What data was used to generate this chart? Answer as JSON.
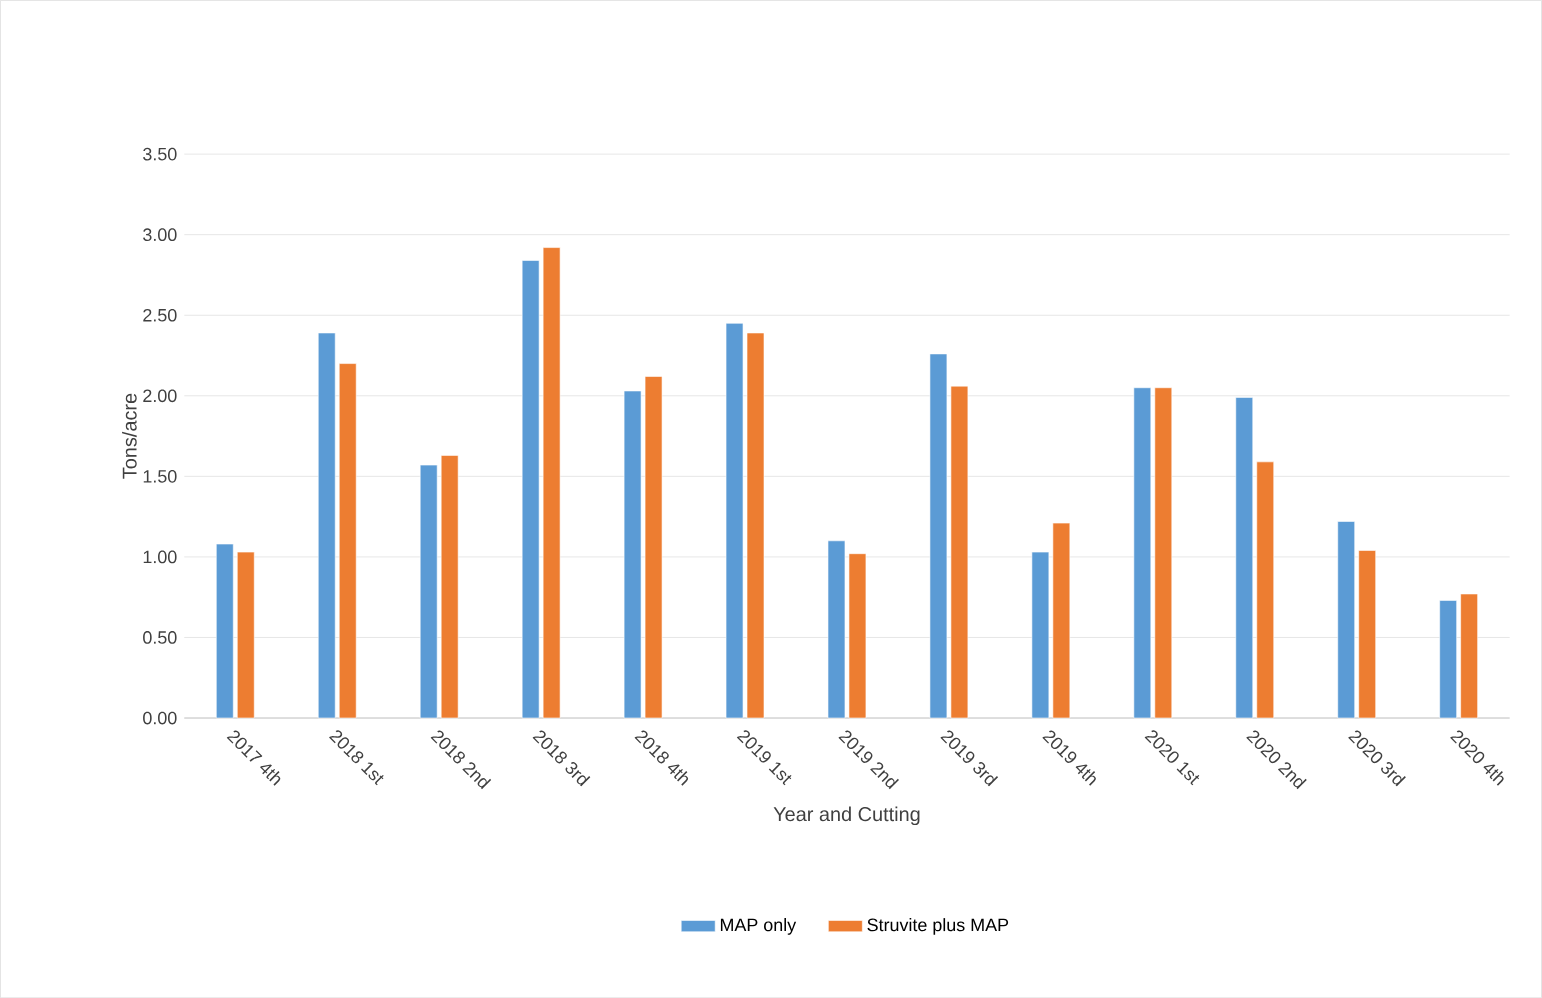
{
  "chart_data": {
    "type": "bar",
    "xlabel": "Year and Cutting",
    "ylabel": "Tons/acre",
    "categories": [
      "2017 4th",
      "2018 1st",
      "2018 2nd",
      "2018 3rd",
      "2018 4th",
      "2019 1st",
      "2019 2nd",
      "2019 3rd",
      "2019 4th",
      "2020 1st",
      "2020 2nd",
      "2020 3rd",
      "2020 4th"
    ],
    "series": [
      {
        "name": "MAP only",
        "color": "#5b9bd5",
        "values": [
          1.08,
          2.39,
          1.57,
          2.84,
          2.03,
          2.45,
          1.1,
          2.26,
          1.03,
          2.05,
          1.99,
          1.22,
          0.73
        ]
      },
      {
        "name": "Struvite plus MAP",
        "color": "#ed7d31",
        "values": [
          1.03,
          2.2,
          1.63,
          2.92,
          2.12,
          2.39,
          1.02,
          2.06,
          1.21,
          2.05,
          1.59,
          1.04,
          0.77
        ]
      }
    ],
    "ylim": [
      0,
      3.5
    ],
    "yticks": [
      {
        "value": 0,
        "label": "0.00"
      },
      {
        "value": 0.5,
        "label": "0.50"
      },
      {
        "value": 1,
        "label": "1.00"
      },
      {
        "value": 1.5,
        "label": "1.50"
      },
      {
        "value": 2,
        "label": "2.00"
      },
      {
        "value": 2.5,
        "label": "2.50"
      },
      {
        "value": 3,
        "label": "3.00"
      },
      {
        "value": 3.5,
        "label": "3.50"
      }
    ],
    "grid": "y",
    "legend": "bottom"
  }
}
